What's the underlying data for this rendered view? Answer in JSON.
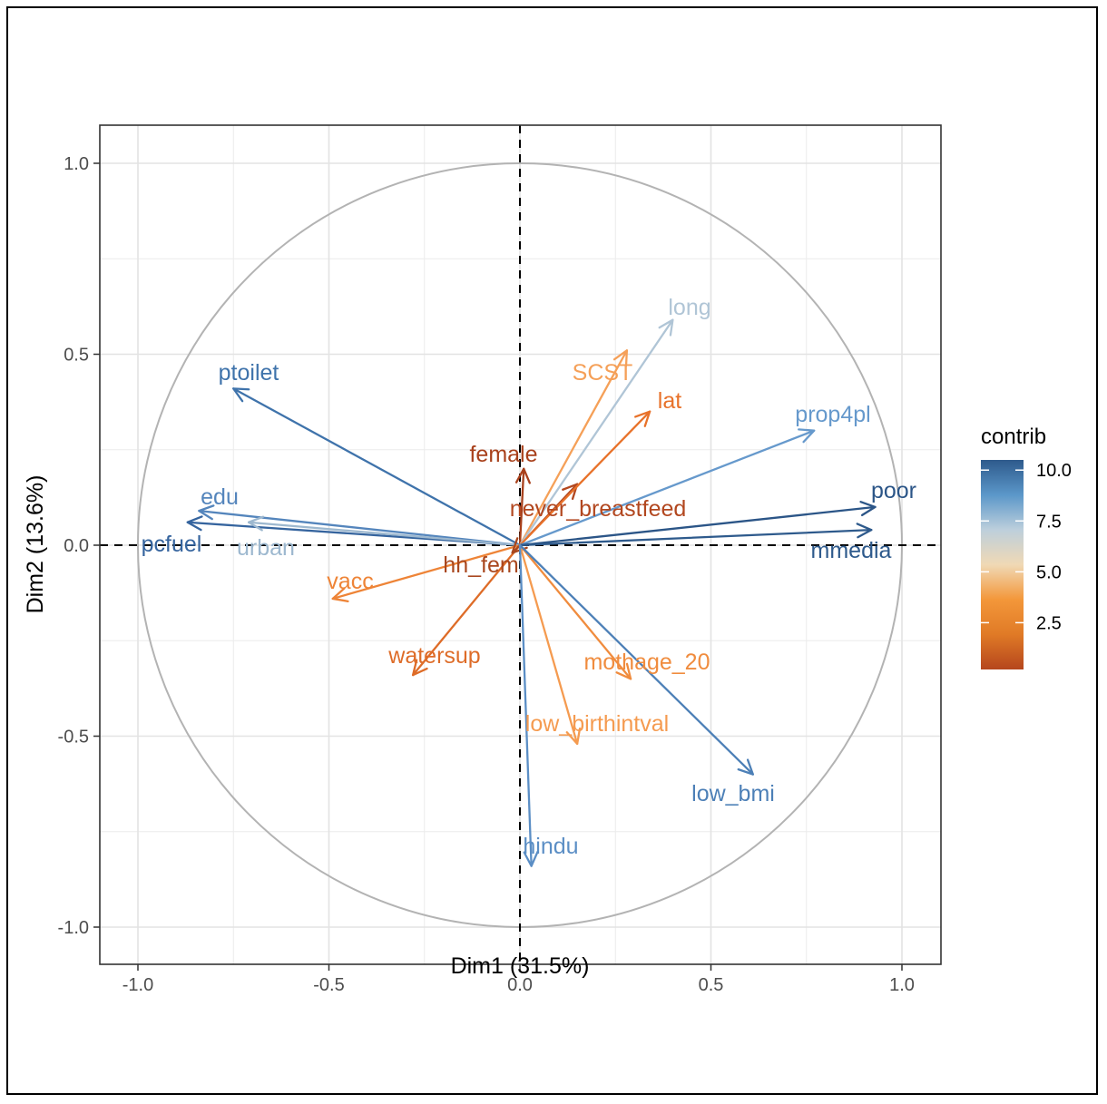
{
  "chart_data": {
    "type": "pca-variables-correlation-circle",
    "xlabel": "Dim1 (31.5%)",
    "ylabel": "Dim2 (13.6%)",
    "xlim": [
      -1.1,
      1.1
    ],
    "ylim": [
      -1.1,
      1.1
    ],
    "xticks": [
      -1.0,
      -0.5,
      0.0,
      0.5,
      1.0
    ],
    "yticks": [
      -1.0,
      -0.5,
      0.0,
      0.5,
      1.0
    ],
    "xtick_labels": [
      "-1.0",
      "-0.5",
      "0.0",
      "0.5",
      "1.0"
    ],
    "ytick_labels": [
      "-1.0",
      "-0.5",
      "0.0",
      "0.5",
      "1.0"
    ],
    "grid": true,
    "unit_circle": true,
    "legend": {
      "title": "contrib",
      "placement": "right",
      "ticks": [
        "10.0",
        "7.5",
        "5.0",
        "2.5"
      ],
      "tick_values": [
        10.0,
        7.5,
        5.0,
        2.5
      ],
      "range": [
        0.2,
        10.5
      ],
      "gradient_colors": [
        "#2E5A8C",
        "#5B97C9",
        "#BDCFDC",
        "#F0D9B5",
        "#F3973A",
        "#E07A26",
        "#B5461D"
      ]
    },
    "variables": [
      {
        "name": "ptoilet",
        "x": -0.75,
        "y": 0.41,
        "contrib": 8.3,
        "color": "#3F73AB"
      },
      {
        "name": "edu",
        "x": -0.84,
        "y": 0.09,
        "contrib": 7.9,
        "color": "#5485BC"
      },
      {
        "name": "pcfuel",
        "x": -0.87,
        "y": 0.06,
        "contrib": 9.3,
        "color": "#35649E"
      },
      {
        "name": "urban",
        "x": -0.71,
        "y": 0.06,
        "contrib": 6.2,
        "color": "#9DB8CF"
      },
      {
        "name": "vacc",
        "x": -0.49,
        "y": -0.14,
        "contrib": 3.2,
        "color": "#EE8437"
      },
      {
        "name": "watersup",
        "x": -0.28,
        "y": -0.34,
        "contrib": 2.6,
        "color": "#DE6C28"
      },
      {
        "name": "hh_fem",
        "x": -0.02,
        "y": -0.02,
        "contrib": 0.6,
        "color": "#A9471E"
      },
      {
        "name": "female",
        "x": 0.01,
        "y": 0.2,
        "contrib": 0.4,
        "color": "#A8401B"
      },
      {
        "name": "never_breastfeed",
        "x": 0.15,
        "y": 0.16,
        "contrib": 0.8,
        "color": "#B2471F"
      },
      {
        "name": "SCST",
        "x": 0.28,
        "y": 0.51,
        "contrib": 4.2,
        "color": "#F5A058"
      },
      {
        "name": "long",
        "x": 0.4,
        "y": 0.59,
        "contrib": 5.9,
        "color": "#B0C5D6"
      },
      {
        "name": "lat",
        "x": 0.34,
        "y": 0.35,
        "contrib": 2.9,
        "color": "#E8722A"
      },
      {
        "name": "prop4pl",
        "x": 0.77,
        "y": 0.3,
        "contrib": 7.4,
        "color": "#6699CC"
      },
      {
        "name": "poor",
        "x": 0.93,
        "y": 0.1,
        "contrib": 10.3,
        "color": "#2B5587"
      },
      {
        "name": "mmedia",
        "x": 0.92,
        "y": 0.04,
        "contrib": 10.1,
        "color": "#2E5A8C"
      },
      {
        "name": "mothage_20",
        "x": 0.29,
        "y": -0.35,
        "contrib": 3.4,
        "color": "#F08C3E"
      },
      {
        "name": "low_birthintval",
        "x": 0.15,
        "y": -0.52,
        "contrib": 3.9,
        "color": "#F59B50"
      },
      {
        "name": "low_bmi",
        "x": 0.61,
        "y": -0.6,
        "contrib": 8.1,
        "color": "#4D80B7"
      },
      {
        "name": "hindu",
        "x": 0.03,
        "y": -0.84,
        "contrib": 7.6,
        "color": "#5B8EC5"
      }
    ]
  }
}
